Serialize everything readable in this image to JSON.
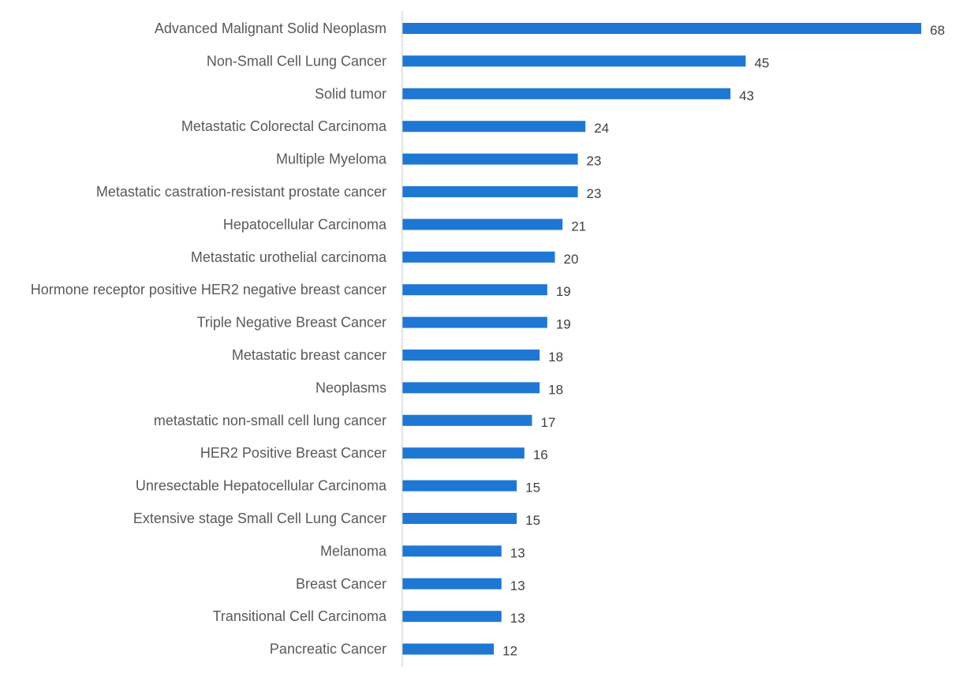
{
  "chart_data": {
    "type": "bar",
    "orientation": "horizontal",
    "title": "",
    "xlabel": "",
    "ylabel": "",
    "xlim": [
      0,
      68
    ],
    "grid": false,
    "legend": "none",
    "bar_color": "#1f77d4",
    "axis_color": "#c8c8c8",
    "categories": [
      "Advanced Malignant Solid Neoplasm",
      "Non-Small Cell Lung Cancer",
      "Solid tumor",
      "Metastatic Colorectal Carcinoma",
      "Multiple Myeloma",
      "Metastatic castration-resistant prostate cancer",
      "Hepatocellular Carcinoma",
      "Metastatic urothelial carcinoma",
      "Hormone receptor positive HER2 negative breast cancer",
      "Triple Negative Breast Cancer",
      "Metastatic breast cancer",
      "Neoplasms",
      "metastatic non-small cell lung cancer",
      "HER2 Positive Breast Cancer",
      "Unresectable Hepatocellular Carcinoma",
      "Extensive stage Small Cell Lung Cancer",
      "Melanoma",
      "Breast Cancer",
      "Transitional Cell Carcinoma",
      "Pancreatic Cancer"
    ],
    "values": [
      68,
      45,
      43,
      24,
      23,
      23,
      21,
      20,
      19,
      19,
      18,
      18,
      17,
      16,
      15,
      15,
      13,
      13,
      13,
      12
    ]
  }
}
